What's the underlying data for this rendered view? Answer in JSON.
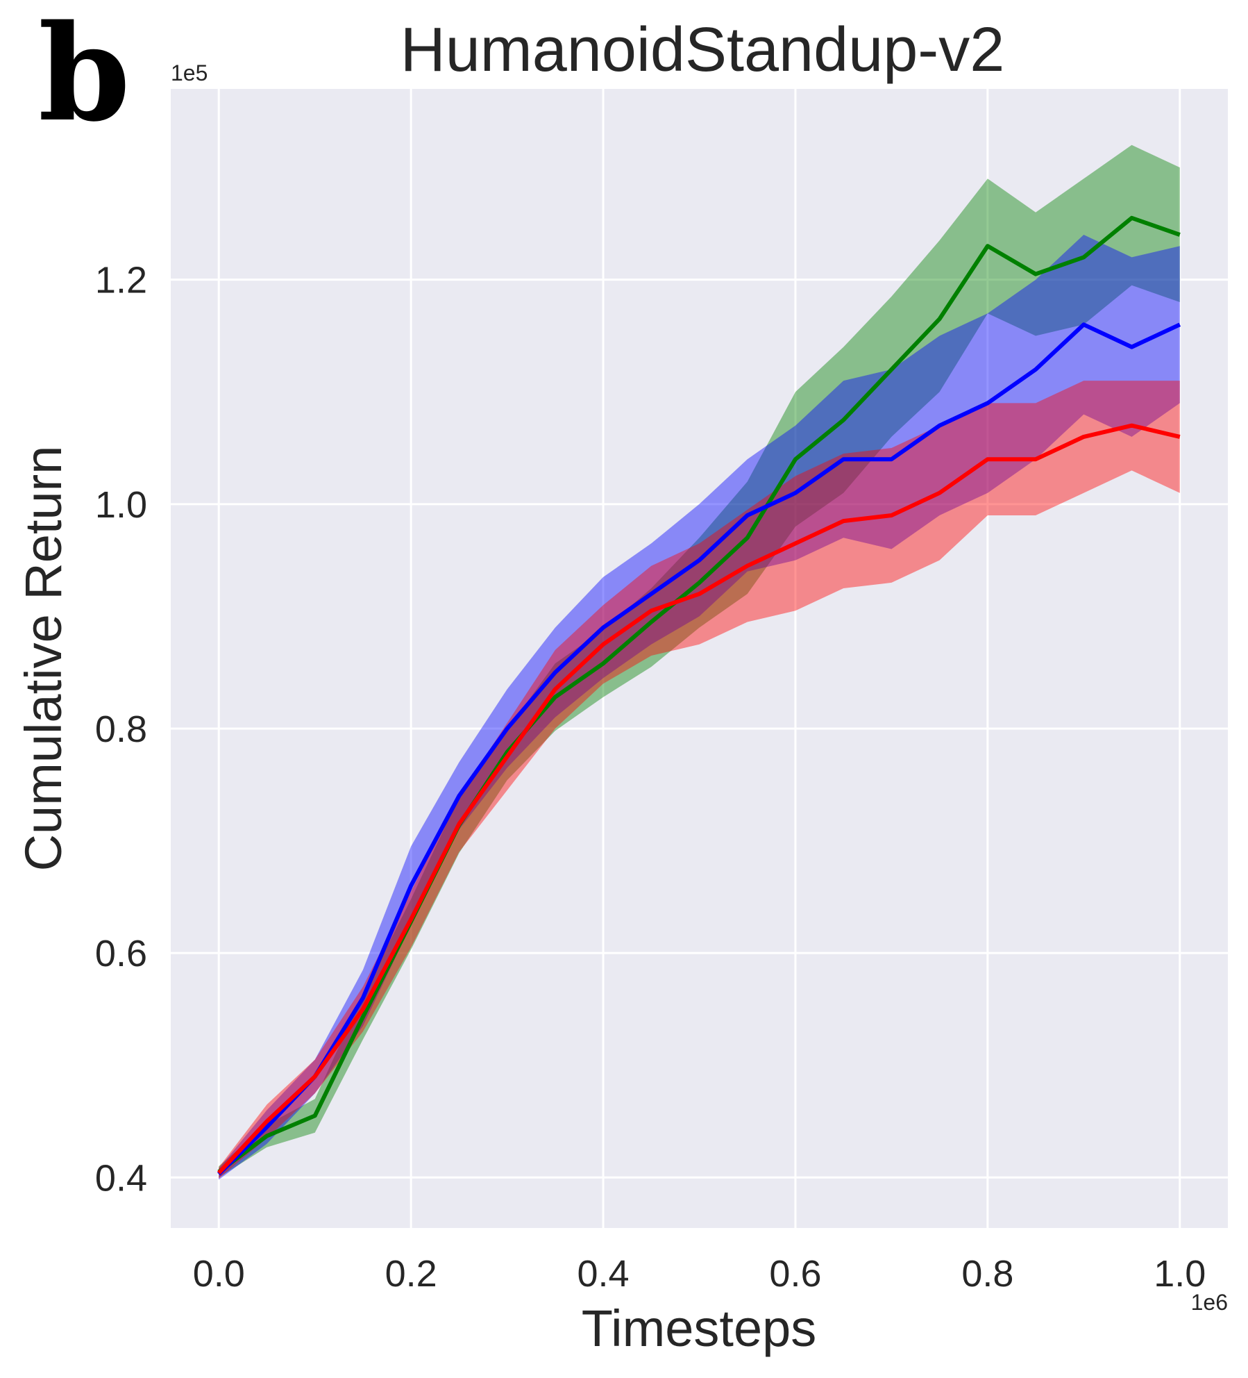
{
  "panel_label": "b",
  "chart_data": {
    "type": "line",
    "title": "HumanoidStandup-v2",
    "xlabel": "Timesteps",
    "ylabel": "Cumulative Return",
    "x_offset_label": "1e6",
    "y_offset_label": "1e5",
    "xlim": [
      -0.05,
      1.05
    ],
    "ylim": [
      0.355,
      1.37
    ],
    "xticks": [
      0.0,
      0.2,
      0.4,
      0.6,
      0.8,
      1.0
    ],
    "xtick_labels": [
      "0.0",
      "0.2",
      "0.4",
      "0.6",
      "0.8",
      "1.0"
    ],
    "yticks": [
      0.4,
      0.6,
      0.8,
      1.0,
      1.2
    ],
    "ytick_labels": [
      "0.4",
      "0.6",
      "0.8",
      "1.0",
      "1.2"
    ],
    "grid": true,
    "background": "#eaeaf2",
    "x": [
      0.0,
      0.05,
      0.1,
      0.15,
      0.2,
      0.25,
      0.3,
      0.35,
      0.4,
      0.45,
      0.5,
      0.55,
      0.6,
      0.65,
      0.7,
      0.75,
      0.8,
      0.85,
      0.9,
      0.95,
      1.0
    ],
    "series": [
      {
        "name": "green",
        "color": "#008000",
        "mean": [
          0.405,
          0.437,
          0.455,
          0.543,
          0.628,
          0.714,
          0.779,
          0.828,
          0.858,
          0.895,
          0.93,
          0.97,
          1.04,
          1.075,
          1.12,
          1.165,
          1.23,
          1.205,
          1.22,
          1.255,
          1.24
        ],
        "upper": [
          0.41,
          0.447,
          0.47,
          0.563,
          0.648,
          0.739,
          0.799,
          0.858,
          0.888,
          0.925,
          0.97,
          1.02,
          1.1,
          1.14,
          1.185,
          1.235,
          1.29,
          1.26,
          1.29,
          1.32,
          1.3
        ],
        "lower": [
          0.4,
          0.427,
          0.44,
          0.523,
          0.603,
          0.689,
          0.754,
          0.798,
          0.828,
          0.855,
          0.89,
          0.92,
          0.98,
          1.01,
          1.06,
          1.1,
          1.17,
          1.15,
          1.16,
          1.195,
          1.18
        ]
      },
      {
        "name": "blue",
        "color": "#0000ff",
        "mean": [
          0.403,
          0.445,
          0.49,
          0.56,
          0.66,
          0.74,
          0.8,
          0.85,
          0.89,
          0.92,
          0.95,
          0.99,
          1.01,
          1.04,
          1.04,
          1.07,
          1.09,
          1.12,
          1.16,
          1.14,
          1.16
        ],
        "upper": [
          0.408,
          0.46,
          0.505,
          0.585,
          0.695,
          0.77,
          0.835,
          0.89,
          0.935,
          0.965,
          1.0,
          1.04,
          1.07,
          1.11,
          1.12,
          1.15,
          1.17,
          1.2,
          1.24,
          1.22,
          1.23
        ],
        "lower": [
          0.398,
          0.43,
          0.475,
          0.535,
          0.625,
          0.71,
          0.765,
          0.81,
          0.845,
          0.875,
          0.9,
          0.94,
          0.95,
          0.97,
          0.96,
          0.99,
          1.01,
          1.04,
          1.08,
          1.06,
          1.09
        ]
      },
      {
        "name": "red",
        "color": "#ff0000",
        "mean": [
          0.404,
          0.45,
          0.49,
          0.55,
          0.63,
          0.715,
          0.775,
          0.835,
          0.875,
          0.905,
          0.92,
          0.945,
          0.965,
          0.985,
          0.99,
          1.01,
          1.04,
          1.04,
          1.06,
          1.07,
          1.06
        ],
        "upper": [
          0.409,
          0.465,
          0.505,
          0.57,
          0.655,
          0.74,
          0.805,
          0.87,
          0.91,
          0.945,
          0.965,
          0.995,
          1.025,
          1.045,
          1.05,
          1.07,
          1.09,
          1.09,
          1.11,
          1.11,
          1.11
        ],
        "lower": [
          0.399,
          0.435,
          0.475,
          0.53,
          0.605,
          0.69,
          0.745,
          0.8,
          0.84,
          0.865,
          0.875,
          0.895,
          0.905,
          0.925,
          0.93,
          0.95,
          0.99,
          0.99,
          1.01,
          1.03,
          1.01
        ]
      }
    ]
  }
}
